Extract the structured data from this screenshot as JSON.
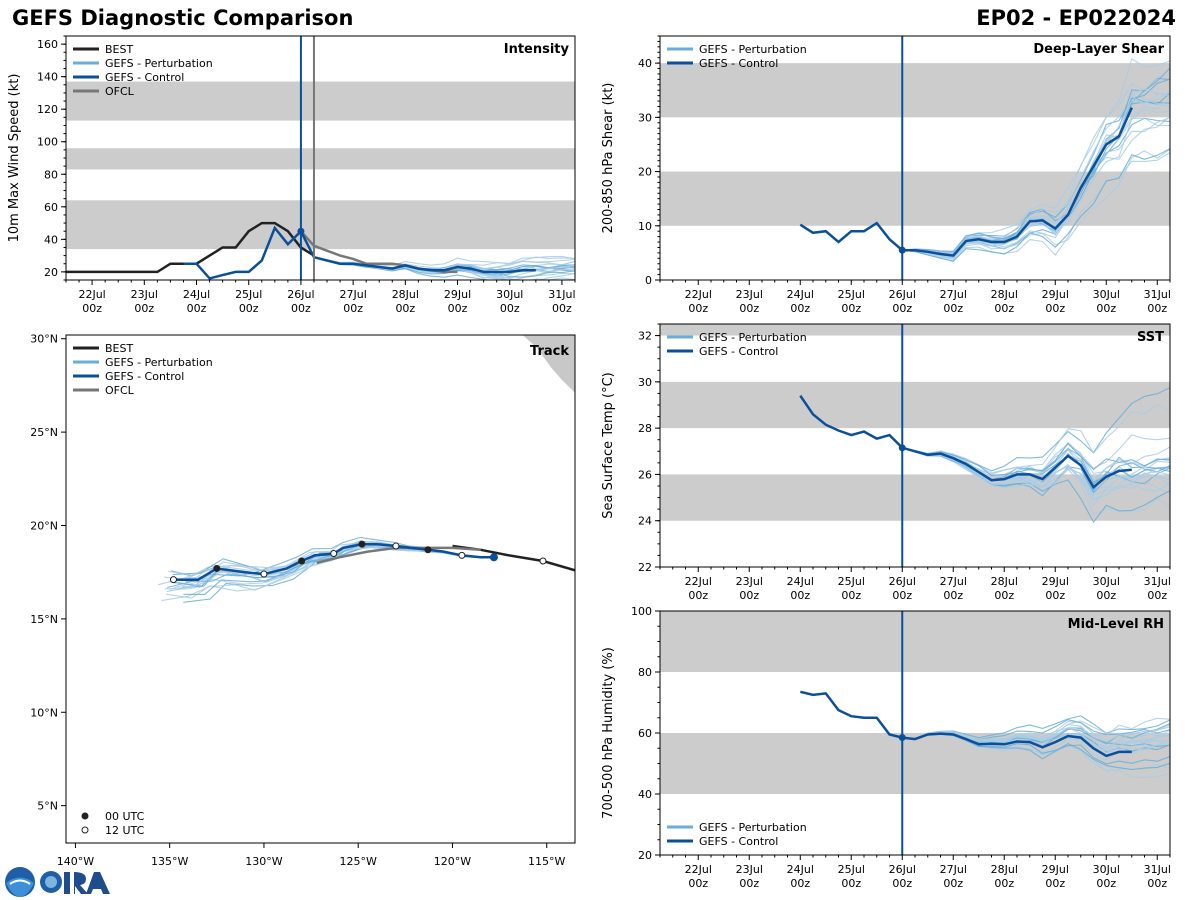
{
  "header": {
    "title": "GEFS Diagnostic Comparison",
    "storm_id": "EP02 - EP022024"
  },
  "colors": {
    "best": "#222222",
    "pert": "#6aaed6",
    "pert_light": "#a9cde6",
    "control": "#0b4f9a",
    "ofcl": "#777777",
    "band": "#cccccc",
    "land": "#c8c8c8"
  },
  "legend_labels": {
    "best": "BEST",
    "pert": "GEFS - Perturbation",
    "control": "GEFS - Control",
    "ofcl": "OFCL",
    "utc00": "00 UTC",
    "utc12": "12 UTC"
  },
  "time_ticks": [
    {
      "day": 22,
      "l1": "22Jul",
      "l2": "00z"
    },
    {
      "day": 23,
      "l1": "23Jul",
      "l2": "00z"
    },
    {
      "day": 24,
      "l1": "24Jul",
      "l2": "00z"
    },
    {
      "day": 25,
      "l1": "25Jul",
      "l2": "00z"
    },
    {
      "day": 26,
      "l1": "26Jul",
      "l2": "00z"
    },
    {
      "day": 27,
      "l1": "27Jul",
      "l2": "00z"
    },
    {
      "day": 28,
      "l1": "28Jul",
      "l2": "00z"
    },
    {
      "day": 29,
      "l1": "29Jul",
      "l2": "00z"
    },
    {
      "day": 30,
      "l1": "30Jul",
      "l2": "00z"
    },
    {
      "day": 31,
      "l1": "31Jul",
      "l2": "00z"
    }
  ],
  "chart_data": [
    {
      "id": "intensity",
      "type": "line",
      "title": "Intensity",
      "ylabel": "10m Max Wind Speed (kt)",
      "xlim": [
        21.5,
        31.25
      ],
      "ylim": [
        15,
        165
      ],
      "yticks": [
        20,
        40,
        60,
        80,
        100,
        120,
        140,
        160
      ],
      "bands": [
        [
          34,
          64
        ],
        [
          83,
          96
        ],
        [
          113,
          137
        ]
      ],
      "init_day": 26.0,
      "ofcl_line_day": 26.25,
      "best": {
        "x": [
          21.5,
          21.75,
          22,
          22.25,
          22.5,
          22.75,
          23,
          23.25,
          23.5,
          23.75,
          24,
          24.25,
          24.5,
          24.75,
          25,
          25.25,
          25.5,
          25.75,
          26,
          26.25
        ],
        "y": [
          20,
          20,
          20,
          20,
          20,
          20,
          20,
          20,
          25,
          25,
          25,
          30,
          35,
          35,
          45,
          50,
          50,
          45,
          35,
          30
        ]
      },
      "control": {
        "x": [
          23.75,
          24,
          24.25,
          24.5,
          24.75,
          25,
          25.25,
          25.5,
          25.75,
          26,
          26.25,
          26.5,
          26.75,
          27,
          27.25,
          27.5,
          27.75,
          28,
          28.25,
          28.5,
          28.75,
          29,
          29.25,
          29.5,
          29.75,
          30,
          30.25,
          30.5
        ],
        "y": [
          25,
          25,
          16,
          18,
          20,
          20,
          27,
          47,
          37,
          45,
          29,
          27,
          25,
          25,
          24,
          23,
          22,
          24,
          22,
          21,
          21,
          23,
          22,
          20,
          20,
          20,
          21,
          21
        ]
      },
      "ofcl": {
        "x": [
          26,
          26.25,
          26.5,
          26.75,
          27,
          27.25,
          27.5,
          27.75,
          28,
          28.25,
          28.5,
          28.75,
          29
        ],
        "y": [
          45,
          36,
          33,
          30,
          28,
          25,
          25,
          25,
          24,
          22,
          21,
          20,
          20
        ]
      }
    },
    {
      "id": "shear",
      "type": "line",
      "title": "Deep-Layer Shear",
      "ylabel": "200-850 hPa Shear (kt)",
      "xlim": [
        21.25,
        31.25
      ],
      "ylim": [
        0,
        45
      ],
      "yticks": [
        0,
        10,
        20,
        30,
        40
      ],
      "bands": [
        [
          10,
          20
        ],
        [
          30,
          40
        ]
      ],
      "init_day": 26.0,
      "control": {
        "x": [
          24,
          24.25,
          24.5,
          24.75,
          25,
          25.25,
          25.5,
          25.75,
          26,
          26.25,
          26.5,
          26.75,
          27,
          27.25,
          27.5,
          27.75,
          28,
          28.25,
          28.5,
          28.75,
          29,
          29.25,
          29.5,
          29.75,
          30,
          30.25,
          30.5
        ],
        "y": [
          10.2,
          8.7,
          9,
          7,
          9,
          9,
          10.5,
          7.5,
          5.5,
          5.5,
          5.2,
          4.8,
          4.5,
          7.2,
          7.5,
          7,
          7,
          8,
          10.8,
          11,
          9.5,
          12,
          17,
          21,
          25,
          26.5,
          31.8
        ]
      }
    },
    {
      "id": "track",
      "type": "scatter",
      "title": "Track",
      "xlim": [
        -140.5,
        -113.5
      ],
      "ylim": [
        3,
        30.2
      ],
      "xticks": [
        -140,
        -135,
        -130,
        -125,
        -120,
        -115
      ],
      "xticklabels": [
        "140°W",
        "135°W",
        "130°W",
        "125°W",
        "120°W",
        "115°W"
      ],
      "yticks": [
        5,
        10,
        15,
        20,
        25,
        30
      ],
      "yticklabels": [
        "5°N",
        "10°N",
        "15°N",
        "20°N",
        "25°N",
        "30°N"
      ],
      "best": {
        "lon": [
          -113.5,
          -115.2,
          -117,
          -118.5,
          -120
        ],
        "lat": [
          17.6,
          18.1,
          18.4,
          18.7,
          18.9
        ]
      },
      "control": {
        "lon": [
          -117.8,
          -118.5,
          -119.5,
          -120.5,
          -121.3,
          -122.2,
          -123,
          -124,
          -124.8,
          -125.8,
          -126.3,
          -127.3,
          -128,
          -128.8,
          -130,
          -131,
          -132.5,
          -133.5,
          -134.8
        ],
        "lat": [
          18.3,
          18.3,
          18.4,
          18.6,
          18.7,
          18.8,
          18.9,
          19,
          19,
          18.8,
          18.5,
          18.4,
          18.1,
          17.7,
          17.4,
          17.5,
          17.7,
          17.1,
          17.1
        ]
      },
      "ofcl": {
        "lon": [
          -118.5,
          -120,
          -121.5,
          -123,
          -124.5,
          -126,
          -127.2
        ],
        "lat": [
          18.7,
          18.8,
          18.8,
          18.8,
          18.6,
          18.3,
          18
        ]
      },
      "markers_00": {
        "lon": [
          -121.3,
          -124.8,
          -128,
          -132.5
        ],
        "lat": [
          18.7,
          19,
          18.1,
          17.7
        ]
      },
      "markers_12": {
        "lon": [
          -115.2,
          -119.5,
          -123,
          -126.3,
          -130,
          -134.8
        ],
        "lat": [
          18.1,
          18.4,
          18.9,
          18.5,
          17.4,
          17.1
        ]
      },
      "control_init": {
        "lon": -117.8,
        "lat": 18.3
      }
    },
    {
      "id": "sst",
      "type": "line",
      "title": "SST",
      "ylabel": "Sea Surface Temp (°C)",
      "xlim": [
        21.25,
        31.25
      ],
      "ylim": [
        22,
        32.5
      ],
      "yticks": [
        22,
        24,
        26,
        28,
        30,
        32
      ],
      "bands": [
        [
          24,
          26
        ],
        [
          28,
          30
        ],
        [
          32,
          32.5
        ]
      ],
      "init_day": 26.0,
      "control": {
        "x": [
          24,
          24.25,
          24.5,
          24.75,
          25,
          25.25,
          25.5,
          25.75,
          26,
          26.25,
          26.5,
          26.75,
          27,
          27.25,
          27.5,
          27.75,
          28,
          28.25,
          28.5,
          28.75,
          29,
          29.25,
          29.5,
          29.75,
          30,
          30.25,
          30.5
        ],
        "y": [
          29.4,
          28.6,
          28.15,
          27.9,
          27.7,
          27.85,
          27.55,
          27.7,
          27.15,
          27,
          26.85,
          26.9,
          26.7,
          26.45,
          26.1,
          25.75,
          25.8,
          26,
          26,
          25.8,
          26.3,
          26.8,
          26.4,
          25.45,
          25.9,
          26.15,
          26.2
        ]
      }
    },
    {
      "id": "rh",
      "type": "line",
      "title": "Mid-Level RH",
      "ylabel": "700-500 hPa Humidity (%)",
      "xlim": [
        21.25,
        31.25
      ],
      "ylim": [
        20,
        100
      ],
      "yticks": [
        20,
        40,
        60,
        80,
        100
      ],
      "bands": [
        [
          40,
          60
        ],
        [
          80,
          100
        ]
      ],
      "init_day": 26.0,
      "control": {
        "x": [
          24,
          24.25,
          24.5,
          24.75,
          25,
          25.25,
          25.5,
          25.75,
          26,
          26.25,
          26.5,
          26.75,
          27,
          27.25,
          27.5,
          27.75,
          28,
          28.25,
          28.5,
          28.75,
          29,
          29.25,
          29.5,
          29.75,
          30,
          30.25,
          30.5
        ],
        "y": [
          73.5,
          72.5,
          73,
          67.5,
          65.5,
          65,
          65,
          59.5,
          58.5,
          58,
          59.5,
          59.8,
          59.5,
          58,
          56.3,
          56.5,
          56.3,
          57.2,
          57,
          55.3,
          57,
          59,
          58.5,
          55,
          52.5,
          53.8,
          53.8
        ]
      }
    }
  ]
}
